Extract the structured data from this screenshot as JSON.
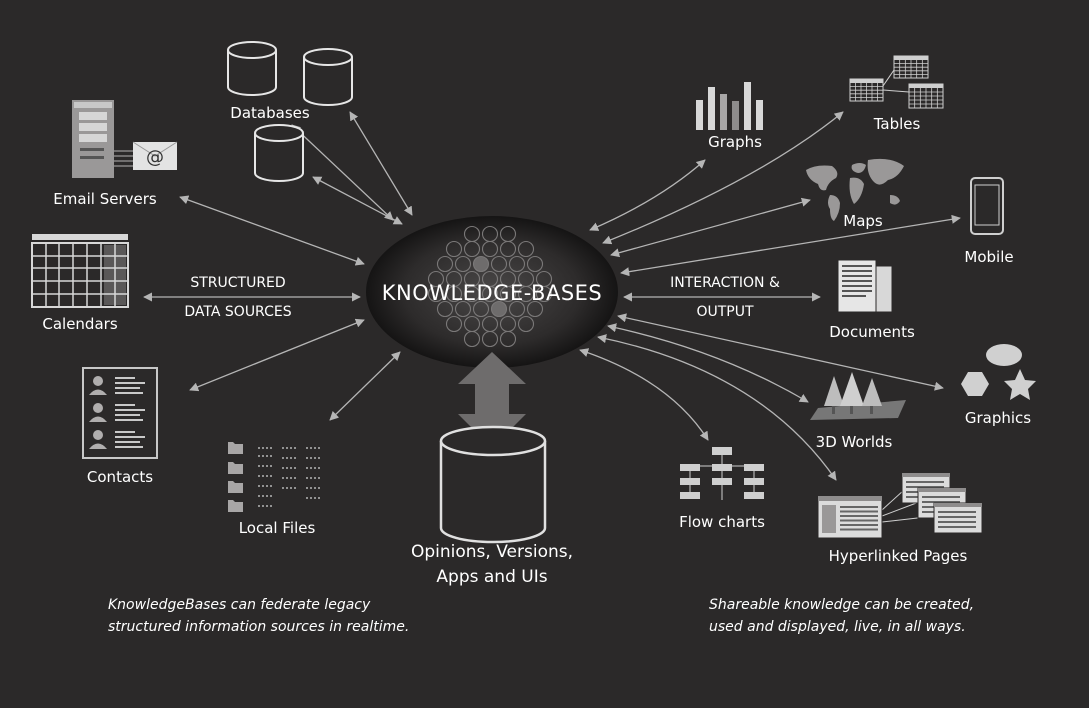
{
  "center": {
    "title": "KNOWLEDGE-BASES"
  },
  "left_sources": {
    "databases": "Databases",
    "email_servers": "Email Servers",
    "calendars": "Calendars",
    "contacts": "Contacts",
    "local_files": "Local Files",
    "arrow_label_line1": "STRUCTURED",
    "arrow_label_line2": "DATA SOURCES"
  },
  "bottom": {
    "line1": "Opinions, Versions,",
    "line2": "Apps and UIs"
  },
  "right_outputs": {
    "graphs": "Graphs",
    "tables": "Tables",
    "maps": "Maps",
    "mobile": "Mobile",
    "documents": "Documents",
    "graphics": "Graphics",
    "worlds": "3D Worlds",
    "flow_charts": "Flow charts",
    "hyperlinked_pages": "Hyperlinked Pages",
    "arrow_label_line1": "INTERACTION &",
    "arrow_label_line2": "OUTPUT"
  },
  "captions": {
    "left_line1": "KnowledgeBases can federate legacy",
    "left_line2": "structured information sources in realtime.",
    "right_line1": "Shareable knowledge can be created,",
    "right_line2": "used and displayed, live, in all ways."
  },
  "icons": {
    "center": "neural-network-icon",
    "databases": "database-icon",
    "email": "email-server-icon",
    "calendar": "calendar-icon",
    "contacts": "contacts-icon",
    "files": "files-icon",
    "graphs": "bar-chart-icon",
    "tables": "tables-icon",
    "maps": "world-map-icon",
    "mobile": "mobile-phone-icon",
    "documents": "documents-icon",
    "graphics": "shapes-icon",
    "worlds": "3d-trees-icon",
    "flow_charts": "flow-chart-icon",
    "hyperlinked_pages": "web-pages-icon",
    "store": "big-database-icon"
  },
  "colors": {
    "background": "#2b2929",
    "arrow": "#b5b5b5",
    "icon_light": "#d8d8d8",
    "icon_dark": "#3a3838"
  }
}
